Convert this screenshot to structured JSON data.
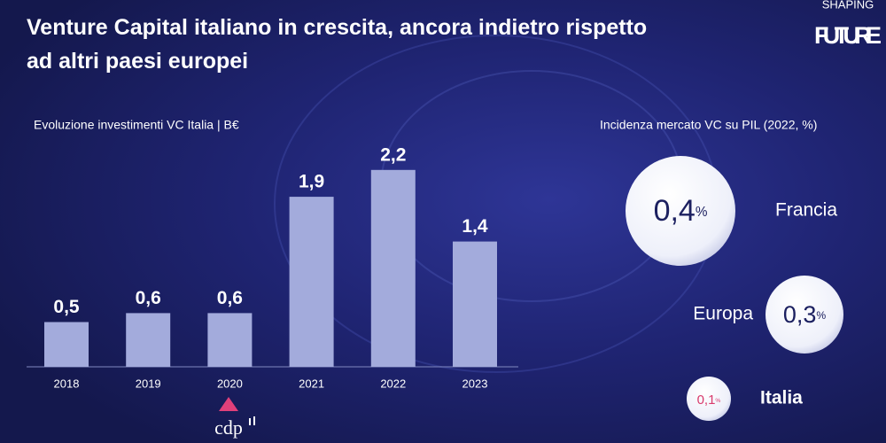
{
  "title": "Venture Capital italiano in crescita, ancora indietro rispetto ad altri paesi europei",
  "brand": {
    "top": "SHAPING",
    "bottom": "FUTURE"
  },
  "source_logo": "cdp",
  "chart_data": [
    {
      "type": "bar",
      "title": "Evoluzione investimenti VC Italia | B€",
      "categories": [
        "2018",
        "2019",
        "2020",
        "2021",
        "2022",
        "2023"
      ],
      "values": [
        0.5,
        0.6,
        0.6,
        1.9,
        2.2,
        1.4
      ],
      "value_labels": [
        "0,5",
        "0,6",
        "0,6",
        "1,9",
        "2,2",
        "1,4"
      ],
      "color": "#a3abdc"
    },
    {
      "type": "bubble",
      "title": "Incidenza mercato VC su PIL (2022, %)",
      "categories": [
        "Francia",
        "Europa",
        "Italia"
      ],
      "values": [
        0.4,
        0.3,
        0.1
      ],
      "value_labels": [
        "0,4",
        "0,3",
        "0,1"
      ],
      "unit": "%",
      "colors": [
        "#1c2060",
        "#1c2060",
        "#d83a6c"
      ]
    }
  ]
}
